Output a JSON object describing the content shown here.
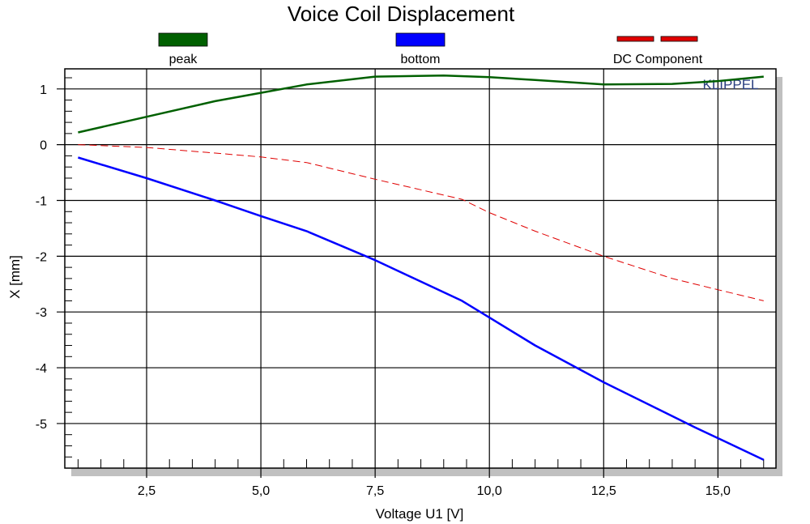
{
  "chart_data": {
    "type": "line",
    "title": "Voice Coil Displacement",
    "xlabel": "Voltage U1  [V]",
    "ylabel": "X  [mm]",
    "xlim": [
      0.71,
      16.27
    ],
    "ylim": [
      -5.8,
      1.36
    ],
    "x_ticks": [
      2.5,
      5.0,
      7.5,
      10.0,
      12.5,
      15.0
    ],
    "x_tick_labels": [
      "2,5",
      "5,0",
      "7,5",
      "10,0",
      "12,5",
      "15,0"
    ],
    "y_ticks": [
      1,
      0,
      -1,
      -2,
      -3,
      -4,
      -5
    ],
    "y_tick_labels": [
      "1",
      "0",
      "-1",
      "-2",
      "-3",
      "-4",
      "-5"
    ],
    "grid": true,
    "legend_position": "top",
    "watermark": "KLIPPEL",
    "series": [
      {
        "name": "peak",
        "color": "#006000",
        "style": "solid",
        "x": [
          1,
          2.5,
          4,
          5,
          6,
          7.5,
          9,
          10,
          11,
          12.5,
          14,
          15,
          16
        ],
        "y": [
          0.22,
          0.5,
          0.78,
          0.93,
          1.08,
          1.22,
          1.24,
          1.21,
          1.16,
          1.08,
          1.09,
          1.14,
          1.22
        ]
      },
      {
        "name": "bottom",
        "color": "#0000ff",
        "style": "solid",
        "x": [
          1,
          2.5,
          4,
          5,
          6,
          7.5,
          9.4,
          10,
          11,
          12.5,
          14.5,
          16
        ],
        "y": [
          -0.23,
          -0.6,
          -1.0,
          -1.28,
          -1.55,
          -2.07,
          -2.8,
          -3.1,
          -3.6,
          -4.26,
          -5.07,
          -5.65
        ]
      },
      {
        "name": "DC Component",
        "color": "#e00000",
        "style": "dashed",
        "x": [
          1,
          2.5,
          4,
          5,
          6,
          7.5,
          9.4,
          10,
          11,
          12.5,
          14,
          15,
          16
        ],
        "y": [
          0,
          -0.05,
          -0.15,
          -0.22,
          -0.32,
          -0.62,
          -0.98,
          -1.22,
          -1.55,
          -2.0,
          -2.4,
          -2.6,
          -2.8
        ]
      }
    ]
  }
}
